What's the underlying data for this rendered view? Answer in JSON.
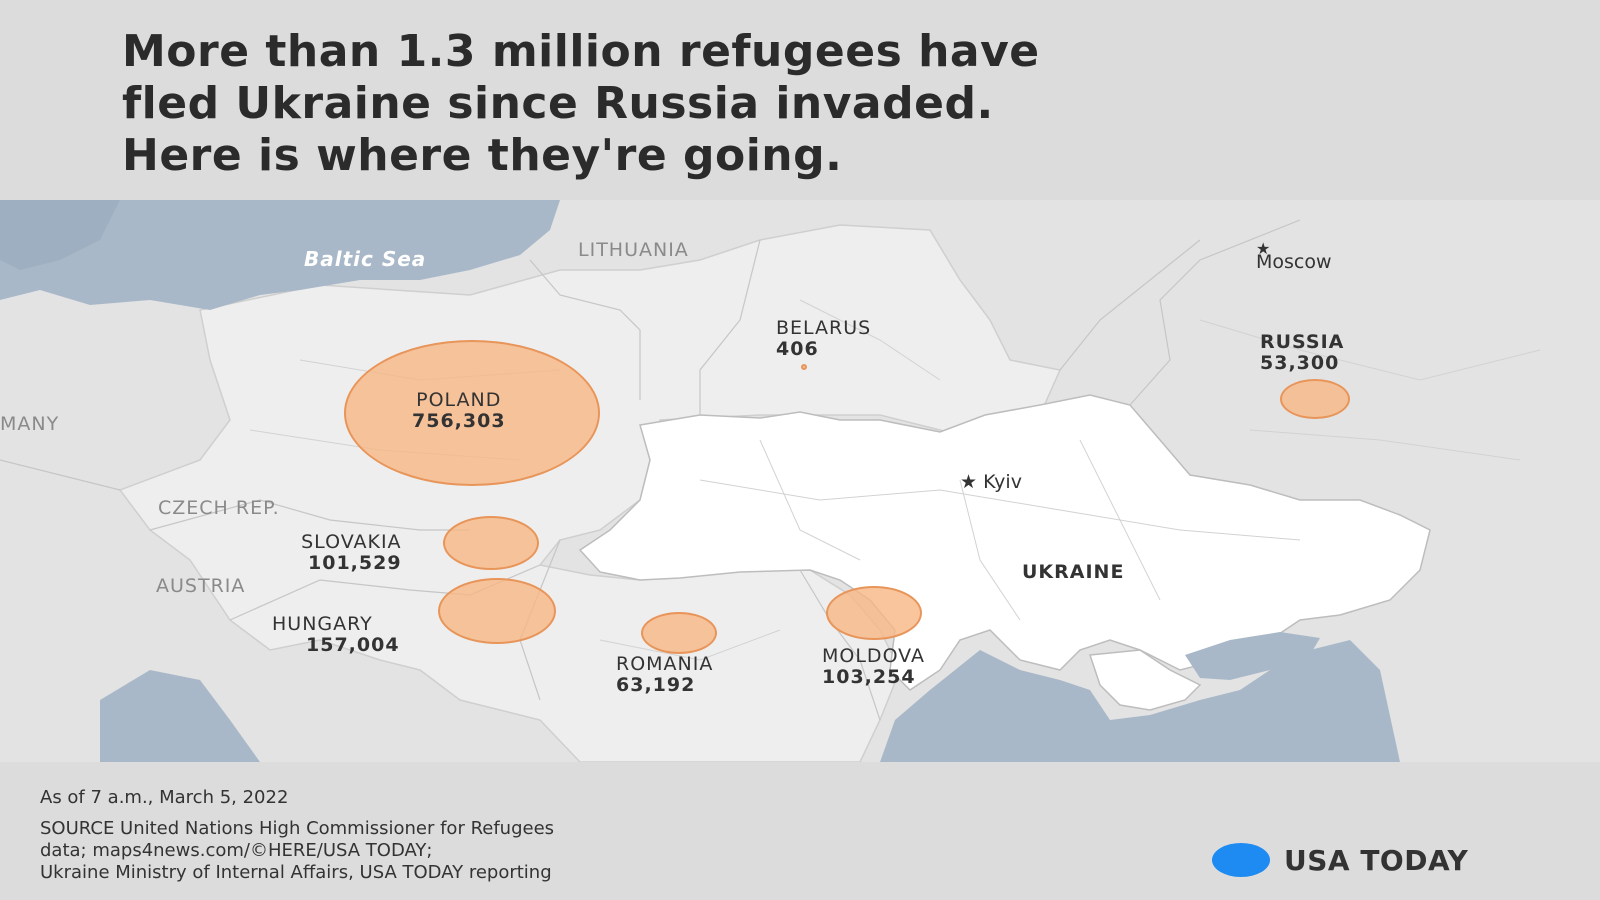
{
  "headline": [
    "More than 1.3 million refugees have",
    "fled Ukraine since Russia invaded.",
    "Here is where they're going."
  ],
  "map": {
    "sea_label": "Baltic Sea",
    "countries": {
      "lithuania": "LITHUANIA",
      "germany": "MANY",
      "czech": "CZECH REP.",
      "austria": "AUSTRIA",
      "ukraine": "UKRAINE"
    },
    "cities": {
      "moscow": "Moscow",
      "kyiv": "Kyiv"
    },
    "refugees": [
      {
        "country": "POLAND",
        "count": "756,303",
        "value": 756303
      },
      {
        "country": "BELARUS",
        "count": "406",
        "value": 406
      },
      {
        "country": "RUSSIA",
        "count": "53,300",
        "value": 53300
      },
      {
        "country": "SLOVAKIA",
        "count": "101,529",
        "value": 101529
      },
      {
        "country": "HUNGARY",
        "count": "157,004",
        "value": 157004
      },
      {
        "country": "ROMANIA",
        "count": "63,192",
        "value": 63192
      },
      {
        "country": "MOLDOVA",
        "count": "103,254",
        "value": 103254
      }
    ],
    "colors": {
      "bubble": "#f7b784",
      "water": "#a9b8c8",
      "ukraine": "#ffffff",
      "land": "#e3e3e3"
    }
  },
  "footer": {
    "as_of": "As of 7 a.m., March 5, 2022",
    "source_lines": [
      "SOURCE United Nations High Commissioner for Refugees",
      "data; maps4news.com/©HERE/USA TODAY;",
      "Ukraine Ministry of Internal Affairs, USA TODAY reporting"
    ],
    "brand": "USA TODAY"
  }
}
